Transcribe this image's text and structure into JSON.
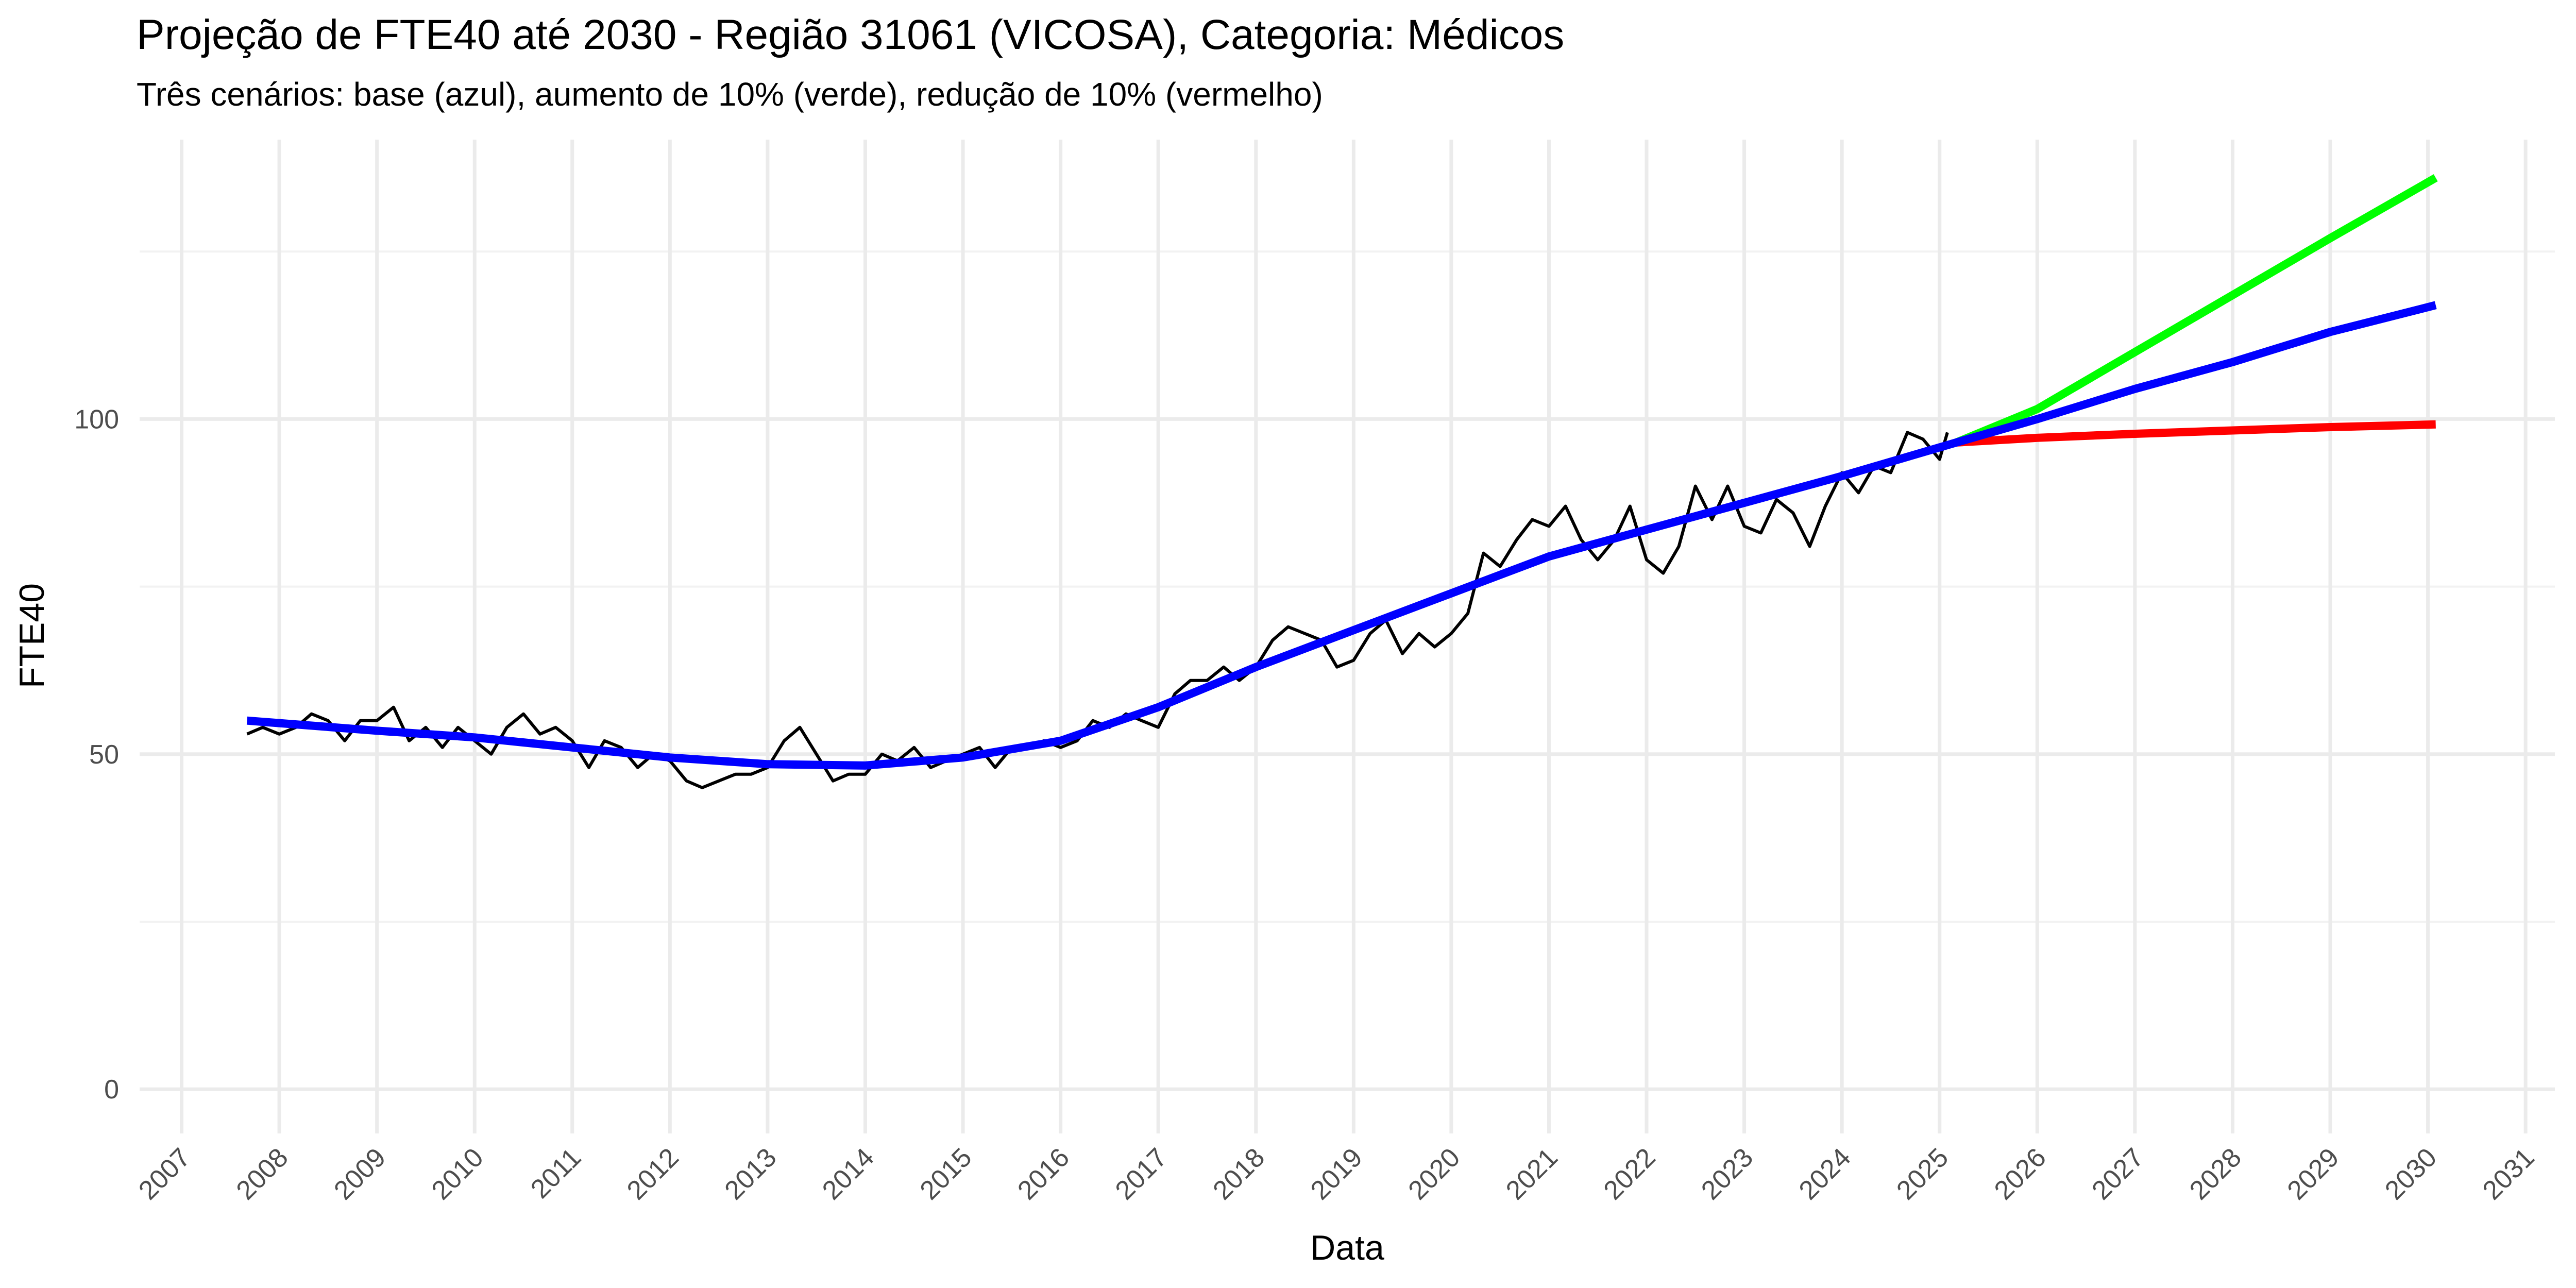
{
  "chart_data": {
    "type": "line",
    "title": "Projeção de FTE40 até 2030 - Região 31061 (VICOSA), Categoria: Médicos",
    "subtitle": "Três cenários: base (azul), aumento de 10% (verde), redução de 10% (vermelho)",
    "x_label": "Data",
    "y_label": "FTE40",
    "xlim": [
      2006.57,
      2031.3
    ],
    "ylim": [
      -6.6,
      141.7
    ],
    "xticks": [
      2007,
      2008,
      2009,
      2010,
      2011,
      2012,
      2013,
      2014,
      2015,
      2016,
      2017,
      2018,
      2019,
      2020,
      2021,
      2022,
      2023,
      2024,
      2025,
      2026,
      2027,
      2028,
      2029,
      2030,
      2031
    ],
    "yticks": [
      0,
      50,
      100
    ],
    "y_minor_ticks": [
      25,
      75,
      125
    ],
    "grid": true,
    "series": [
      {
        "color": "#000000",
        "width": "thin",
        "x": [
          2007.67,
          2007.83,
          2008.0,
          2008.17,
          2008.33,
          2008.5,
          2008.67,
          2008.83,
          2009.0,
          2009.17,
          2009.33,
          2009.5,
          2009.67,
          2009.83,
          2010.0,
          2010.17,
          2010.33,
          2010.5,
          2010.67,
          2010.83,
          2011.0,
          2011.17,
          2011.33,
          2011.5,
          2011.67,
          2011.83,
          2012.0,
          2012.17,
          2012.33,
          2012.5,
          2012.67,
          2012.83,
          2013.0,
          2013.17,
          2013.33,
          2013.5,
          2013.67,
          2013.83,
          2014.0,
          2014.17,
          2014.33,
          2014.5,
          2014.67,
          2014.83,
          2015.0,
          2015.17,
          2015.33,
          2015.5,
          2015.67,
          2015.83,
          2016.0,
          2016.17,
          2016.33,
          2016.5,
          2016.67,
          2016.83,
          2017.0,
          2017.17,
          2017.33,
          2017.5,
          2017.67,
          2017.83,
          2018.0,
          2018.17,
          2018.33,
          2018.5,
          2018.67,
          2018.83,
          2019.0,
          2019.17,
          2019.33,
          2019.5,
          2019.67,
          2019.83,
          2020.0,
          2020.17,
          2020.33,
          2020.5,
          2020.67,
          2020.83,
          2021.0,
          2021.17,
          2021.33,
          2021.5,
          2021.67,
          2021.83,
          2022.0,
          2022.17,
          2022.33,
          2022.5,
          2022.67,
          2022.83,
          2023.0,
          2023.17,
          2023.33,
          2023.5,
          2023.67,
          2023.83,
          2024.0,
          2024.17,
          2024.33,
          2024.5,
          2024.67,
          2024.83,
          2025.0,
          2025.08
        ],
        "values": [
          53,
          54,
          53,
          54,
          56,
          55,
          52,
          55,
          55,
          57,
          52,
          54,
          51,
          54,
          52,
          50,
          54,
          56,
          53,
          54,
          52,
          48,
          52,
          51,
          48,
          50,
          49,
          46,
          45,
          46,
          47,
          47,
          48,
          52,
          54,
          50,
          46,
          47,
          47,
          50,
          49,
          51,
          48,
          49,
          50,
          51,
          48,
          51,
          51,
          52,
          51,
          52,
          55,
          54,
          56,
          55,
          54,
          59,
          61,
          61,
          63,
          61,
          63,
          67,
          69,
          68,
          67,
          63,
          64,
          68,
          70,
          65,
          68,
          66,
          68,
          71,
          80,
          78,
          82,
          85,
          84,
          87,
          82,
          79,
          82,
          87,
          79,
          77,
          81,
          90,
          85,
          90,
          84,
          83,
          88,
          86,
          81,
          87,
          92,
          89,
          93,
          92,
          98,
          97,
          94,
          98
        ]
      },
      {
        "color": "#00ff00",
        "width": "thick",
        "x": [
          2025.17,
          2026,
          2027,
          2028,
          2029,
          2030.08
        ],
        "values": [
          96.5,
          101.5,
          110,
          118.5,
          127,
          136
        ]
      },
      {
        "color": "#ff0000",
        "width": "thick",
        "x": [
          2025.17,
          2026,
          2027,
          2028,
          2029,
          2030.08
        ],
        "values": [
          96.5,
          97.2,
          97.8,
          98.3,
          98.8,
          99.2
        ]
      },
      {
        "color": "#0000ff",
        "width": "thick",
        "x": [
          2007.67,
          2009,
          2010,
          2011,
          2012,
          2013,
          2014,
          2015,
          2016,
          2017,
          2018,
          2019,
          2020,
          2021,
          2022,
          2023,
          2024,
          2025.17,
          2026,
          2027,
          2028,
          2029,
          2030.08
        ],
        "values": [
          55,
          53.5,
          52.5,
          51,
          49.5,
          48.5,
          48.3,
          49.5,
          52,
          57,
          63,
          68.5,
          74,
          79.5,
          83.5,
          87.5,
          91.5,
          96.5,
          100,
          104.5,
          108.5,
          113,
          117
        ]
      }
    ]
  }
}
